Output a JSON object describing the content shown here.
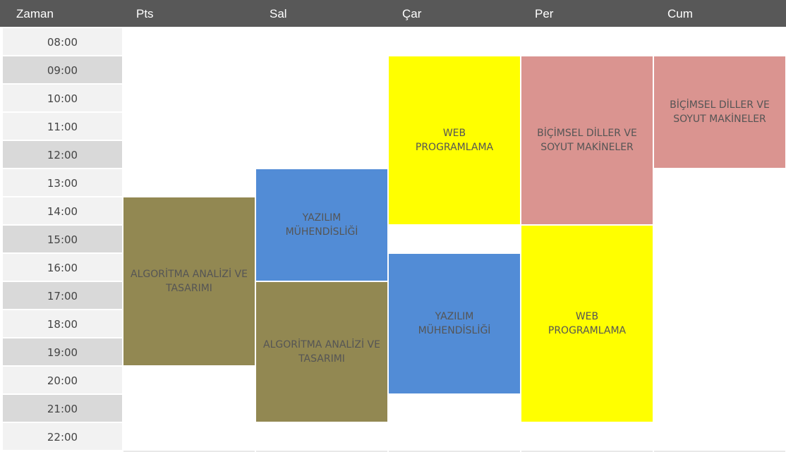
{
  "header": {
    "time_label": "Zaman",
    "days": [
      "Pts",
      "Sal",
      "Çar",
      "Per",
      "Cum"
    ]
  },
  "times": [
    "08:00",
    "09:00",
    "10:00",
    "11:00",
    "12:00",
    "13:00",
    "14:00",
    "15:00",
    "16:00",
    "17:00",
    "18:00",
    "19:00",
    "20:00",
    "21:00",
    "22:00"
  ],
  "colors": {
    "header_bg": "#585858",
    "algoritma": "#928852",
    "yazilim": "#528cd6",
    "web": "#ffff00",
    "bicimsel": "#da9490"
  },
  "events": {
    "pts_algoritma": {
      "title": "ALGORİTMA ANALİZİ VE TASARIMI",
      "day": "Pts",
      "start": "14:00",
      "end": "20:00"
    },
    "sal_yazilim": {
      "title": "YAZILIM MÜHENDİSLİĞİ",
      "day": "Sal",
      "start": "13:00",
      "end": "17:00"
    },
    "sal_algoritma": {
      "title": "ALGORİTMA ANALİZİ VE TASARIMI",
      "day": "Sal",
      "start": "17:00",
      "end": "22:00"
    },
    "car_web": {
      "title": "WEB PROGRAMLAMA",
      "day": "Çar",
      "start": "09:00",
      "end": "15:00"
    },
    "car_yazilim": {
      "title": "YAZILIM MÜHENDİSLİĞİ",
      "day": "Çar",
      "start": "16:00",
      "end": "21:00"
    },
    "per_bicimsel": {
      "title": "BİÇİMSEL DİLLER VE SOYUT MAKİNELER",
      "day": "Per",
      "start": "09:00",
      "end": "15:00"
    },
    "per_web": {
      "title": "WEB PROGRAMLAMA",
      "day": "Per",
      "start": "15:00",
      "end": "22:00"
    },
    "cum_bicimsel": {
      "title": "BİÇİMSEL DİLLER VE SOYUT MAKİNELER",
      "day": "Cum",
      "start": "09:00",
      "end": "13:00"
    }
  }
}
